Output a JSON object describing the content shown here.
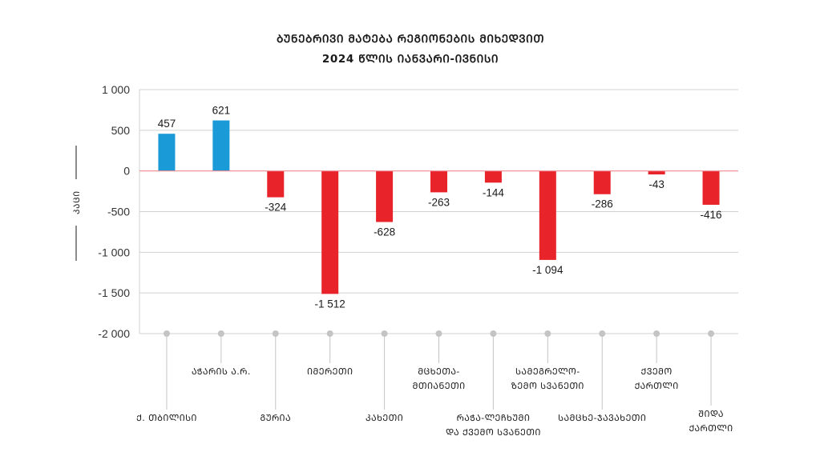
{
  "chart_data": {
    "type": "bar",
    "title": [
      "ᲑᲣᲜᲔᲑᲠᲘᲕᲘ ᲛᲐᲢᲔᲑᲐ ᲠᲔᲒᲘᲝᲜᲔᲑᲘᲡ ᲛᲘᲮᲔᲓᲕᲘᲗ",
      "2024 ᲬᲚᲘᲡ ᲘᲐᲜᲕᲐᲠᲘ-ᲘᲕᲜᲘᲡᲘ"
    ],
    "ylabel": "ᲙᲐᲪᲘ",
    "ylim": [
      -2000,
      1000
    ],
    "yticks": [
      1000,
      500,
      0,
      -500,
      -1000,
      -1500,
      -2000
    ],
    "ytick_labels": [
      "1 000",
      "500",
      "0",
      "-500",
      "-1 000",
      "-1 500",
      "-2 000"
    ],
    "categories": [
      [
        "Ქ. ᲗᲑᲘᲚᲘᲡᲘ"
      ],
      [
        "ᲐᲭᲐᲠᲘᲡ Ა.Რ."
      ],
      [
        "ᲒᲣᲠᲘᲐ"
      ],
      [
        "ᲘᲛᲔᲠᲔᲗᲘ"
      ],
      [
        "ᲙᲐᲮᲔᲗᲘ"
      ],
      [
        "ᲛᲪᲮᲔᲗᲐ-",
        "ᲛᲗᲘᲐᲜᲔᲗᲘ"
      ],
      [
        "ᲠᲐᲭᲐ-ᲚᲔᲩᲮᲣᲛᲘ",
        "ᲓᲐ ᲥᲕᲔᲛᲝ ᲡᲕᲐᲜᲔᲗᲘ"
      ],
      [
        "ᲡᲐᲛᲔᲒᲠᲔᲚᲝ-",
        "ᲖᲔᲛᲝ ᲡᲕᲐᲜᲔᲗᲘ"
      ],
      [
        "ᲡᲐᲛᲪᲮᲔ-ᲯᲐᲕᲐᲮᲔᲗᲘ"
      ],
      [
        "ᲥᲕᲔᲛᲝ",
        "ᲥᲐᲠᲗᲚᲘ"
      ],
      [
        "ᲨᲘᲓᲐ",
        "ᲥᲐᲠᲗᲚᲘ"
      ]
    ],
    "values": [
      457,
      621,
      -324,
      -1512,
      -628,
      -263,
      -144,
      -1094,
      -286,
      -43,
      -416
    ],
    "value_labels": [
      "457",
      "621",
      "-324",
      "-1 512",
      "-628",
      "-263",
      "-144",
      "-1 094",
      "-286",
      "-43",
      "-416"
    ],
    "colors": {
      "positive": "#1a9ad6",
      "negative": "#e8232a",
      "zero_line": "#f08a8f",
      "grid": "#d0d0d0",
      "leader": "#c4c4c4"
    },
    "grid": true,
    "legend": "none"
  }
}
